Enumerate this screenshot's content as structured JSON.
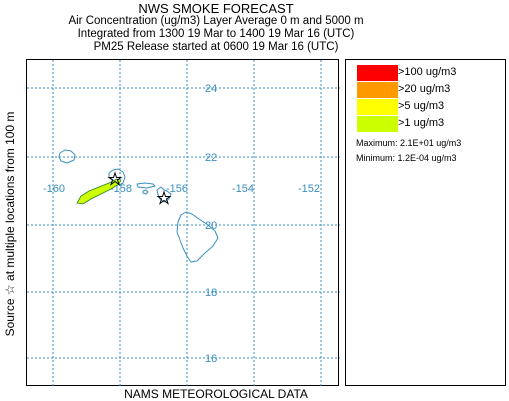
{
  "header": {
    "title": "NWS SMOKE FORECAST",
    "line2": "Air Concentration (ug/m3) Layer Average    0 m and  5000 m",
    "line3": "Integrated from 1300 19 Mar to 1400 19 Mar 16 (UTC)",
    "line4": "PM25 Release started at 0600 19 Mar 16 (UTC)"
  },
  "side_label": "Source ☆    at multiple locations    from  100 m",
  "footer": "NAMS METEOROLOGICAL DATA",
  "map": {
    "longitude_labels": [
      "-160",
      "-158",
      "-156",
      "-154",
      "-152"
    ],
    "latitude_labels": [
      "24",
      "22",
      "20",
      "18",
      "16"
    ],
    "grid_color": "#3a8fc0",
    "coast_color": "#3a8fc0",
    "plume_color": "#ccff00",
    "source_marker": "star-icon"
  },
  "legend": {
    "items": [
      {
        "label": ">100 ug/m3",
        "color": "#ff0000"
      },
      {
        "label": ">20 ug/m3",
        "color": "#ff9900"
      },
      {
        "label": ">5 ug/m3",
        "color": "#ffff00"
      },
      {
        "label": ">1 ug/m3",
        "color": "#ccff00"
      }
    ],
    "maximum": "Maximum: 2.1E+01 ug/m3",
    "minimum": "Minimum: 1.2E-04 ug/m3"
  }
}
